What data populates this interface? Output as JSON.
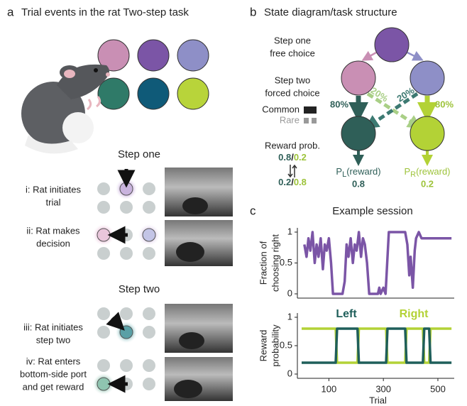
{
  "panel_a": {
    "label": "a",
    "title": "Trial events in the rat Two-step task",
    "step_one": "Step one",
    "step_two": "Step two",
    "rows": [
      [
        "i: Rat initiates",
        "trial"
      ],
      [
        "ii: Rat makes",
        "decision"
      ],
      [
        "iii: Rat initiates",
        "step two"
      ],
      [
        "iv: Rat enters",
        "bottom-side port",
        "and get reward"
      ]
    ]
  },
  "panel_b": {
    "label": "b",
    "title": "State diagram/task structure",
    "step_one": [
      "Step one",
      "free choice"
    ],
    "step_two": [
      "Step two",
      "forced choice"
    ],
    "legend": {
      "common": "Common",
      "rare": "Rare"
    },
    "reward_prob": "Reward prob.",
    "block_1": [
      0.8,
      "/",
      0.2
    ],
    "block_2": [
      0.2,
      "/",
      0.8
    ],
    "transitions": [
      "80%",
      "20%",
      "20%",
      "80%"
    ],
    "left_outcome": {
      "symbol": "P",
      "subscript": "L",
      "text": "(reward)",
      "value": 0.8
    },
    "right_outcome": {
      "symbol": "P",
      "subscript": "R",
      "text": "(reward)",
      "value": 0.2
    }
  },
  "panel_c": {
    "label": "c",
    "title": "Example session"
  },
  "chart_data": [
    {
      "type": "line",
      "ylabel": [
        "Fraction of",
        "choosing right"
      ],
      "xlim": [
        0,
        560
      ],
      "ylim": [
        0,
        1
      ],
      "yticks": [
        0,
        0.5,
        1
      ],
      "x": [
        10,
        18,
        25,
        32,
        40,
        48,
        55,
        62,
        70,
        78,
        85,
        92,
        100,
        108,
        115,
        150,
        158,
        165,
        172,
        180,
        188,
        195,
        202,
        210,
        218,
        225,
        232,
        240,
        248,
        280,
        285,
        290,
        300,
        308,
        320,
        380,
        388,
        395,
        400,
        408,
        415,
        420,
        430,
        440,
        550
      ],
      "series": [
        {
          "color": "#7b55a6",
          "values": [
            0.8,
            0.6,
            0.9,
            0.7,
            1,
            0.5,
            0.8,
            0.6,
            0.9,
            0.4,
            0.8,
            0.7,
            0.9,
            0.5,
            0,
            0,
            0.2,
            0.8,
            0.6,
            0.9,
            0.5,
            0.8,
            0.7,
            1,
            0.6,
            0.9,
            0.8,
            0.5,
            0,
            0,
            0.1,
            0,
            0.1,
            0,
            1,
            1,
            0.8,
            0.3,
            0.6,
            0.1,
            0.7,
            0.9,
            1,
            0.9,
            0.9
          ]
        }
      ]
    },
    {
      "type": "line",
      "xlabel": "Trial",
      "ylabel": [
        "Reward",
        "probability"
      ],
      "xlim": [
        0,
        560
      ],
      "ylim": [
        0,
        1
      ],
      "yticks": [
        0,
        0.5,
        1
      ],
      "xticks": [
        100,
        300,
        500
      ],
      "x": [
        0,
        125,
        130,
        205,
        210,
        310,
        315,
        380,
        385,
        445,
        450,
        468,
        473,
        550
      ],
      "series": [
        {
          "name": "Left",
          "color": "#1f5f5a",
          "values": [
            0.2,
            0.2,
            0.8,
            0.8,
            0.2,
            0.2,
            0.8,
            0.8,
            0.2,
            0.2,
            0.8,
            0.8,
            0.2,
            0.2
          ]
        },
        {
          "name": "Right",
          "color": "#b3d236",
          "values": [
            0.8,
            0.8,
            0.2,
            0.2,
            0.8,
            0.8,
            0.2,
            0.2,
            0.8,
            0.8,
            0.2,
            0.2,
            0.8,
            0.8
          ]
        }
      ]
    }
  ]
}
